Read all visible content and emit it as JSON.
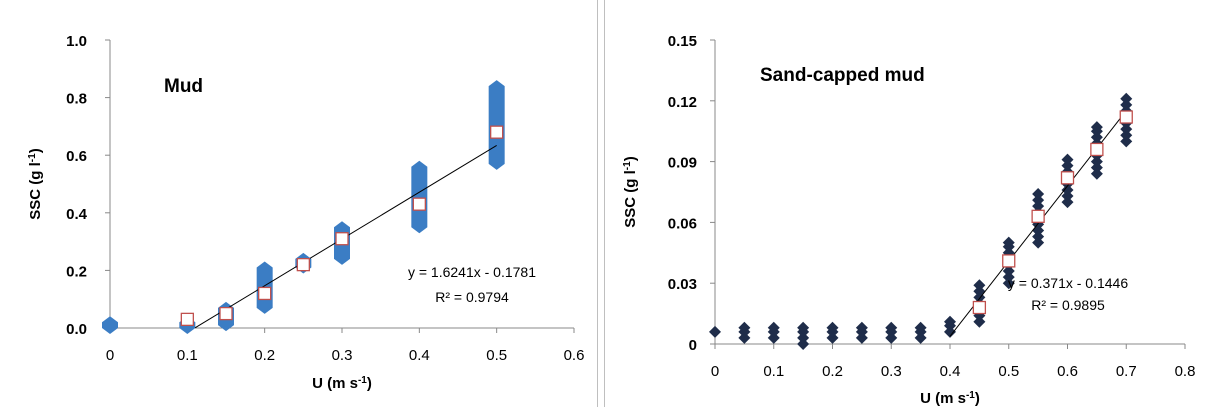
{
  "chart_data": [
    {
      "type": "scatter",
      "title": "Mud",
      "xlabel": "U (m s-1)",
      "ylabel": "SSC (g l-1)",
      "xlim": [
        0,
        0.6
      ],
      "ylim": [
        0,
        1.0
      ],
      "x_ticks": [
        "0",
        "0.1",
        "0.2",
        "0.3",
        "0.4",
        "0.5",
        "0.6"
      ],
      "y_ticks": [
        "0.0",
        "0.2",
        "0.4",
        "0.6",
        "0.8",
        "1.0"
      ],
      "grid": false,
      "colors": {
        "observed": "#3b7dc4",
        "mean_marker_edge": "#c0504d",
        "trendline": "#000000"
      },
      "series": [
        {
          "values": [
            {
              "x": 0,
              "min": 0.0,
              "max": 0.02
            },
            {
              "x": 0.1,
              "min": 0.0,
              "max": 0.02
            },
            {
              "x": 0.15,
              "min": 0.01,
              "max": 0.07
            },
            {
              "x": 0.2,
              "min": 0.07,
              "max": 0.21
            },
            {
              "x": 0.25,
              "min": 0.21,
              "max": 0.24
            },
            {
              "x": 0.3,
              "min": 0.24,
              "max": 0.35
            },
            {
              "x": 0.4,
              "min": 0.35,
              "max": 0.56
            },
            {
              "x": 0.5,
              "min": 0.57,
              "max": 0.84
            }
          ]
        },
        {
          "marker": "open-square",
          "values": [
            {
              "x": 0.1,
              "y": 0.03
            },
            {
              "x": 0.15,
              "y": 0.05
            },
            {
              "x": 0.2,
              "y": 0.12
            },
            {
              "x": 0.25,
              "y": 0.22
            },
            {
              "x": 0.3,
              "y": 0.31
            },
            {
              "x": 0.4,
              "y": 0.43
            },
            {
              "x": 0.5,
              "y": 0.68
            }
          ]
        }
      ],
      "trendline": {
        "slope": 1.6241,
        "intercept": -0.1781,
        "x_range": [
          0.11,
          0.5
        ],
        "equation": "y = 1.6241x - 0.1781",
        "r2": "R² = 0.9794"
      }
    },
    {
      "type": "scatter",
      "title": "Sand-capped  mud",
      "xlabel": "U (m s-1)",
      "ylabel": "SSC (g l-1)",
      "xlim": [
        0,
        0.8
      ],
      "ylim": [
        0,
        0.15
      ],
      "x_ticks": [
        "0",
        "0.1",
        "0.2",
        "0.3",
        "0.4",
        "0.5",
        "0.6",
        "0.7",
        "0.8"
      ],
      "y_ticks": [
        "0",
        "0.03",
        "0.06",
        "0.09",
        "0.12",
        "0.15"
      ],
      "grid": false,
      "colors": {
        "observed": "#1f2d4a",
        "mean_marker_edge": "#c0504d",
        "trendline": "#000000"
      },
      "series": [
        {
          "marker": "diamond",
          "values": [
            {
              "x": 0,
              "y": [
                0.006
              ]
            },
            {
              "x": 0.05,
              "y": [
                0.003,
                0.006,
                0.008
              ]
            },
            {
              "x": 0.1,
              "y": [
                0.003,
                0.006,
                0.008
              ]
            },
            {
              "x": 0.15,
              "y": [
                0.0,
                0.003,
                0.006,
                0.008
              ]
            },
            {
              "x": 0.2,
              "y": [
                0.003,
                0.006,
                0.008
              ]
            },
            {
              "x": 0.25,
              "y": [
                0.003,
                0.006,
                0.008
              ]
            },
            {
              "x": 0.3,
              "y": [
                0.003,
                0.006,
                0.008
              ]
            },
            {
              "x": 0.35,
              "y": [
                0.003,
                0.006,
                0.008
              ]
            },
            {
              "x": 0.4,
              "y": [
                0.006,
                0.009,
                0.011
              ]
            },
            {
              "x": 0.45,
              "y": [
                0.011,
                0.014,
                0.017,
                0.02,
                0.023,
                0.026,
                0.029
              ]
            },
            {
              "x": 0.5,
              "y": [
                0.03,
                0.033,
                0.036,
                0.039,
                0.042,
                0.045,
                0.048,
                0.05
              ]
            },
            {
              "x": 0.55,
              "y": [
                0.05,
                0.053,
                0.056,
                0.059,
                0.062,
                0.065,
                0.068,
                0.071,
                0.074
              ]
            },
            {
              "x": 0.6,
              "y": [
                0.07,
                0.073,
                0.076,
                0.079,
                0.082,
                0.085,
                0.088,
                0.091
              ]
            },
            {
              "x": 0.65,
              "y": [
                0.084,
                0.087,
                0.09,
                0.093,
                0.096,
                0.099,
                0.102,
                0.105,
                0.107
              ]
            },
            {
              "x": 0.7,
              "y": [
                0.1,
                0.103,
                0.106,
                0.109,
                0.112,
                0.115,
                0.118,
                0.121
              ]
            }
          ]
        },
        {
          "marker": "open-square",
          "values": [
            {
              "x": 0.45,
              "y": 0.018
            },
            {
              "x": 0.5,
              "y": 0.041
            },
            {
              "x": 0.55,
              "y": 0.063
            },
            {
              "x": 0.6,
              "y": 0.082
            },
            {
              "x": 0.65,
              "y": 0.096
            },
            {
              "x": 0.7,
              "y": 0.112
            }
          ]
        }
      ],
      "trendline": {
        "slope": 0.371,
        "intercept": -0.1446,
        "x_range": [
          0.4,
          0.7
        ],
        "equation": "y = 0.371x - 0.1446",
        "r2": "R² = 0.9895"
      }
    }
  ]
}
